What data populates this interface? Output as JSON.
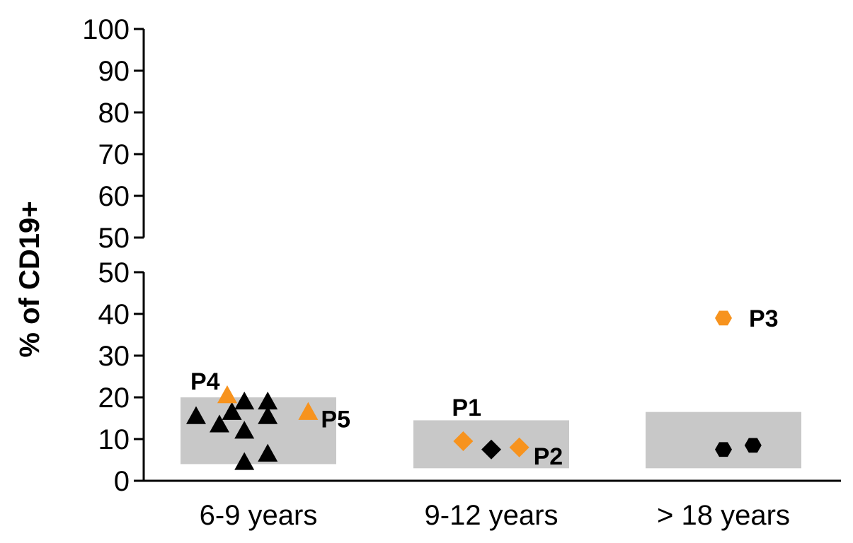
{
  "chart_data": {
    "type": "scatter",
    "title": "",
    "xlabel": "",
    "ylabel": "% of CD19+",
    "categories": [
      "6-9 years",
      "9-12 years",
      "> 18 years"
    ],
    "y_axis_segments": [
      {
        "ylim": [
          0,
          50
        ],
        "ticks": [
          "0",
          "10",
          "20",
          "30",
          "40",
          "50"
        ]
      },
      {
        "ylim": [
          50,
          100
        ],
        "ticks": [
          "50",
          "60",
          "70",
          "80",
          "90",
          "100"
        ]
      }
    ],
    "axis_break": true,
    "grid": false,
    "legend": "none",
    "reference_ranges": [
      {
        "category": "6-9 years",
        "low": 4,
        "high": 20
      },
      {
        "category": "9-12 years",
        "low": 3,
        "high": 14.5
      },
      {
        "category": "> 18 years",
        "low": 3,
        "high": 16.5
      }
    ],
    "series": [
      {
        "group": "controls",
        "category": "6-9 years",
        "marker": "triangle",
        "color": "#000000",
        "points": [
          {
            "x": 0.1,
            "y": 15.5
          },
          {
            "x": 0.25,
            "y": 13.5
          },
          {
            "x": 0.33,
            "y": 16.5
          },
          {
            "x": 0.41,
            "y": 19
          },
          {
            "x": 0.41,
            "y": 12
          },
          {
            "x": 0.41,
            "y": 4.5
          },
          {
            "x": 0.56,
            "y": 19
          },
          {
            "x": 0.56,
            "y": 15.5
          },
          {
            "x": 0.56,
            "y": 6.5
          }
        ]
      },
      {
        "group": "patients",
        "category": "6-9 years",
        "marker": "triangle",
        "color": "#f7931e",
        "points": [
          {
            "x": 0.3,
            "y": 20.5,
            "label": "P4"
          },
          {
            "x": 0.82,
            "y": 16.5,
            "label": "P5"
          }
        ]
      },
      {
        "group": "controls",
        "category": "9-12 years",
        "marker": "diamond",
        "color": "#000000",
        "points": [
          {
            "x": 0.5,
            "y": 7.5
          }
        ]
      },
      {
        "group": "patients",
        "category": "9-12 years",
        "marker": "diamond",
        "color": "#f7931e",
        "points": [
          {
            "x": 0.32,
            "y": 9.5,
            "label": "P1"
          },
          {
            "x": 0.68,
            "y": 8,
            "label": "P2"
          }
        ]
      },
      {
        "group": "controls",
        "category": "> 18 years",
        "marker": "hexagon",
        "color": "#000000",
        "points": [
          {
            "x": 0.5,
            "y": 7.5
          },
          {
            "x": 0.69,
            "y": 8.5
          }
        ]
      },
      {
        "group": "patients",
        "category": "> 18 years",
        "marker": "hexagon",
        "color": "#f7931e",
        "points": [
          {
            "x": 0.5,
            "y": 39,
            "label": "P3"
          }
        ]
      }
    ],
    "colors": {
      "patient": "#f7931e",
      "control": "#000000",
      "range_box": "#c8c8c8"
    }
  }
}
